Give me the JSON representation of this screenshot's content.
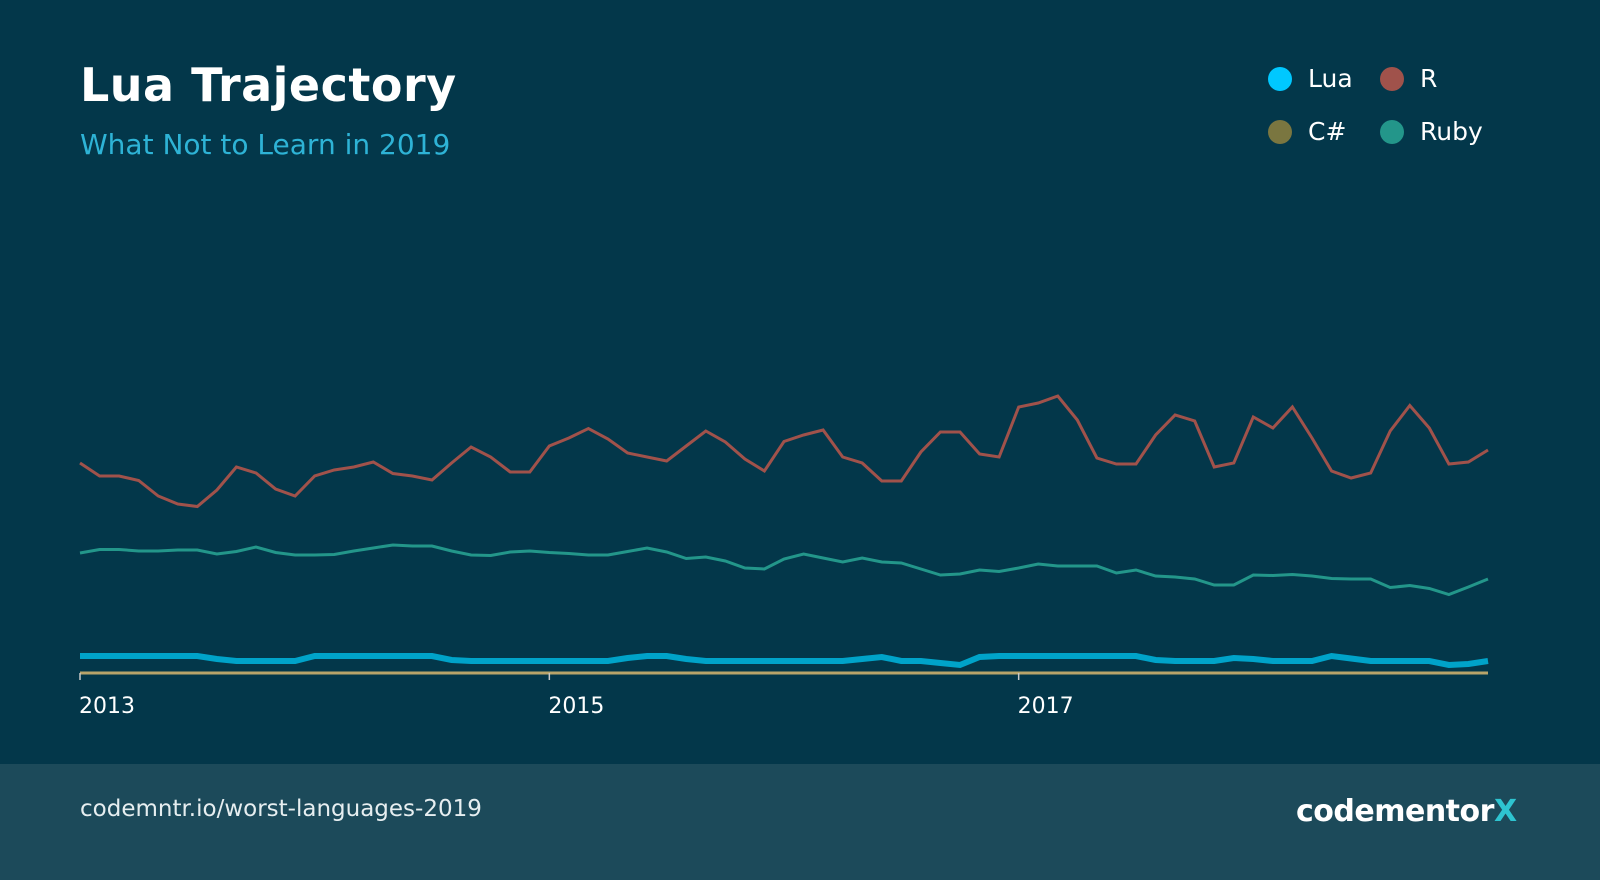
{
  "header": {
    "title": "Lua Trajectory",
    "subtitle": "What Not to Learn in 2019"
  },
  "footer": {
    "url": "codemntr.io/worst-languages-2019",
    "logo_text": "codementor",
    "logo_mark": "X"
  },
  "colors": {
    "background": "#03374a",
    "footer": "#1c4a5a",
    "subtitle": "#2eb3d6",
    "axis": "#b8a46a"
  },
  "chart_data": {
    "type": "line",
    "title": "Lua Trajectory",
    "subtitle": "What Not to Learn in 2019",
    "x_start": "2013-01",
    "x_interval": "month",
    "xticks": [
      "2013",
      "2015",
      "2017"
    ],
    "ylim": [
      0,
      100
    ],
    "grid": false,
    "legend_placement": "top-right",
    "series": [
      {
        "name": "Lua",
        "color": "#00a3c9",
        "legend_color": "#00c8ff",
        "values": [
          3.4,
          3.4,
          3.4,
          3.4,
          3.4,
          3.4,
          3.4,
          2.8,
          2.4,
          2.4,
          2.4,
          2.4,
          3.4,
          3.4,
          3.4,
          3.4,
          3.4,
          3.4,
          3.4,
          2.6,
          2.4,
          2.4,
          2.4,
          2.4,
          2.4,
          2.4,
          2.4,
          2.4,
          3.0,
          3.4,
          3.4,
          2.8,
          2.4,
          2.4,
          2.4,
          2.4,
          2.4,
          2.4,
          2.4,
          2.4,
          2.8,
          3.2,
          2.4,
          2.4,
          2.0,
          1.6,
          3.2,
          3.4,
          3.4,
          3.4,
          3.4,
          3.4,
          3.4,
          3.4,
          3.4,
          2.6,
          2.4,
          2.4,
          2.4,
          3.0,
          2.8,
          2.4,
          2.4,
          2.4,
          3.4,
          2.9,
          2.4,
          2.4,
          2.4,
          2.4,
          1.6,
          1.8,
          2.4
        ]
      },
      {
        "name": "R",
        "color": "#a0524b",
        "legend_color": "#a0524b",
        "values": [
          42,
          39.4,
          39.4,
          38.5,
          35.4,
          33.8,
          33.3,
          36.6,
          41.2,
          40,
          36.8,
          35.4,
          39.4,
          40.6,
          41.2,
          42.2,
          39.9,
          39.4,
          38.6,
          42,
          45.2,
          43.2,
          40.2,
          40.2,
          45.4,
          47,
          48.9,
          46.8,
          44,
          43.2,
          42.4,
          45.4,
          48.4,
          46.2,
          42.8,
          40.4,
          46.3,
          47.6,
          48.6,
          43.2,
          42,
          38.4,
          38.4,
          44.2,
          48.2,
          48.2,
          43.8,
          43.2,
          53.2,
          54,
          55.4,
          50.6,
          43,
          41.8,
          41.8,
          47.6,
          51.6,
          50.4,
          41.2,
          42,
          51.2,
          49,
          53.2,
          47,
          40.4,
          39,
          40,
          48.4,
          53.5,
          49,
          41.8,
          42.2,
          44.6
        ]
      },
      {
        "name": "C#",
        "color": "#b8a46a",
        "legend_color": "#7a7640",
        "values": [
          0,
          0,
          0,
          0,
          0,
          0,
          0,
          0,
          0,
          0,
          0,
          0,
          0,
          0,
          0,
          0,
          0,
          0,
          0,
          0,
          0,
          0,
          0,
          0,
          0,
          0,
          0,
          0,
          0,
          0,
          0,
          0,
          0,
          0,
          0,
          0,
          0,
          0,
          0,
          0,
          0,
          0,
          0,
          0,
          0,
          0,
          0,
          0,
          0,
          0,
          0,
          0,
          0,
          0,
          0,
          0,
          0,
          0,
          0,
          0,
          0,
          0,
          0,
          0,
          0,
          0,
          0,
          0,
          0,
          0,
          0,
          0,
          0
        ]
      },
      {
        "name": "Ruby",
        "color": "#23968a",
        "legend_color": "#23968a",
        "values": [
          24,
          24.7,
          24.7,
          24.4,
          24.4,
          24.6,
          24.6,
          23.8,
          24.3,
          25.2,
          24.1,
          23.6,
          23.6,
          23.7,
          24.4,
          25,
          25.6,
          25.4,
          25.4,
          24.4,
          23.6,
          23.5,
          24.2,
          24.4,
          24.1,
          23.9,
          23.6,
          23.6,
          24.3,
          25,
          24.2,
          22.9,
          23.2,
          22.4,
          21,
          20.8,
          22.8,
          23.8,
          23,
          22.2,
          23,
          22.2,
          22,
          20.8,
          19.6,
          19.8,
          20.6,
          20.3,
          21,
          21.8,
          21.4,
          21.4,
          21.4,
          20,
          20.6,
          19.4,
          19.2,
          18.8,
          17.6,
          17.6,
          19.6,
          19.5,
          19.7,
          19.4,
          18.9,
          18.8,
          18.8,
          17.1,
          17.5,
          16.9,
          15.7,
          17.2,
          18.8
        ]
      }
    ]
  }
}
